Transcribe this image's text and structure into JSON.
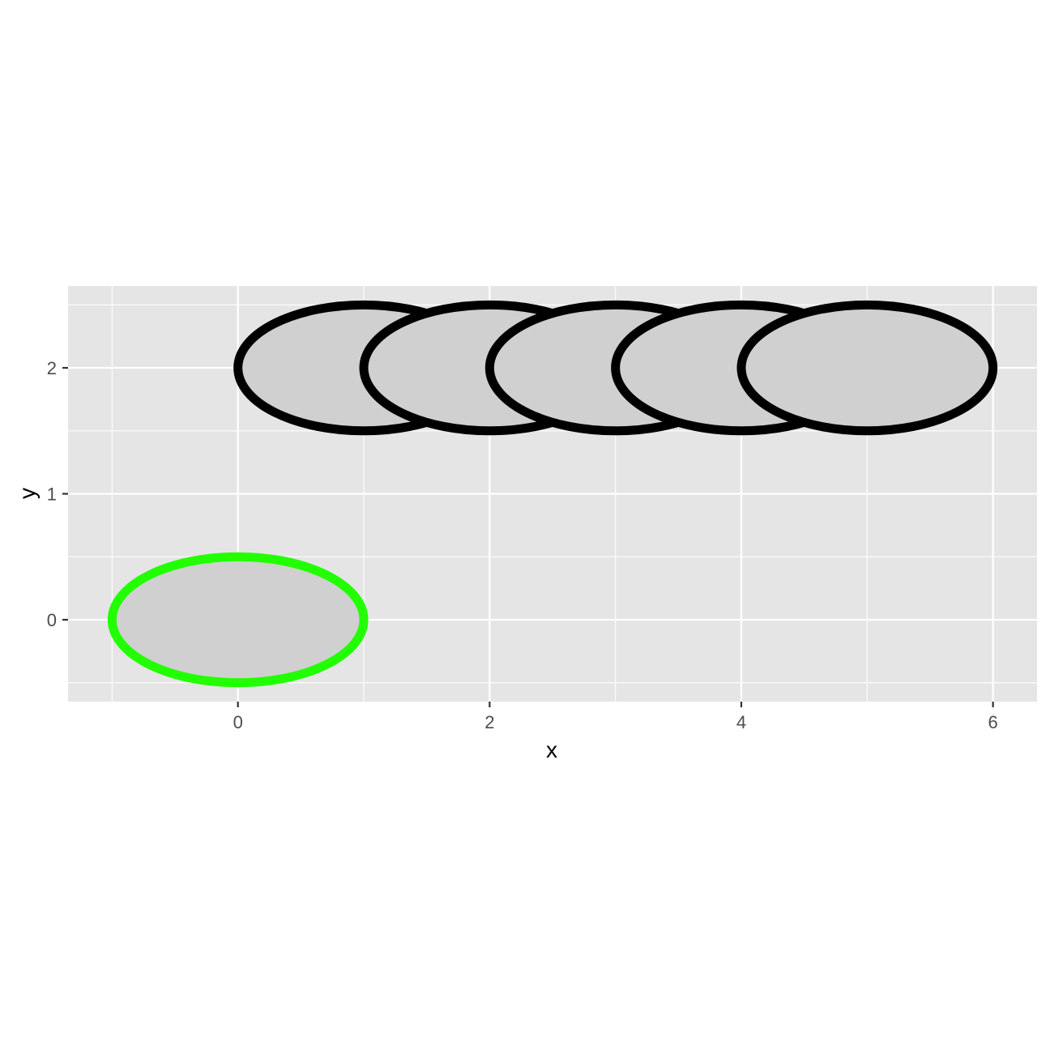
{
  "chart_data": {
    "type": "ellipse",
    "xlabel": "x",
    "ylabel": "y",
    "xlim": [
      -1.35,
      6.35
    ],
    "ylim": [
      -0.65,
      2.65
    ],
    "x_ticks": [
      0,
      2,
      4,
      6
    ],
    "y_ticks": [
      0,
      1,
      2
    ],
    "x_minor_ticks": [
      -1,
      1,
      3,
      5
    ],
    "y_minor_ticks": [
      -0.5,
      0.5,
      1.5,
      2.5
    ],
    "grid": true,
    "legend": "none",
    "colors": {
      "panel": "#e5e5e5",
      "grid": "#ffffff",
      "fill": "#d0d0d0",
      "outline_default": "#000000",
      "outline_highlight": "#22ff00"
    },
    "ellipses": [
      {
        "x": 0,
        "y": 0,
        "rx": 1,
        "ry": 0.5,
        "outline": "#22ff00"
      },
      {
        "x": 1,
        "y": 2,
        "rx": 1,
        "ry": 0.5,
        "outline": "#000000"
      },
      {
        "x": 2,
        "y": 2,
        "rx": 1,
        "ry": 0.5,
        "outline": "#000000"
      },
      {
        "x": 3,
        "y": 2,
        "rx": 1,
        "ry": 0.5,
        "outline": "#000000"
      },
      {
        "x": 4,
        "y": 2,
        "rx": 1,
        "ry": 0.5,
        "outline": "#000000"
      },
      {
        "x": 5,
        "y": 2,
        "rx": 1,
        "ry": 0.5,
        "outline": "#000000"
      }
    ]
  }
}
